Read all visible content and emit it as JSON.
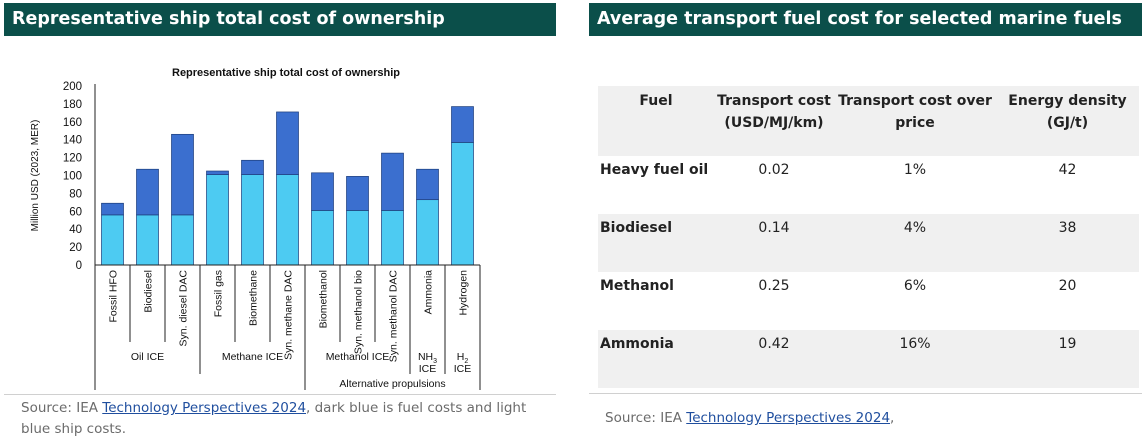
{
  "left_panel": {
    "header": "Representative ship total cost of ownership",
    "source_prefix": "Source:  IEA ",
    "source_link": "Technology Perspectives 2024",
    "source_suffix": ", dark blue is fuel costs and light blue ship costs."
  },
  "right_panel": {
    "header": "Average transport fuel cost for selected marine fuels",
    "source_prefix": "Source:  IEA ",
    "source_link": "Technology Perspectives 2024",
    "source_suffix": ",",
    "table": {
      "headers": [
        "Fuel",
        "Transport cost (USD/MJ/km)",
        "Transport cost over price",
        "Energy density (GJ/t)"
      ],
      "rows": [
        [
          "Heavy fuel oil",
          "0.02",
          "1%",
          "42"
        ],
        [
          "Biodiesel",
          "0.14",
          "4%",
          "38"
        ],
        [
          "Methanol",
          "0.25",
          "6%",
          "20"
        ],
        [
          "Ammonia",
          "0.42",
          "16%",
          "19"
        ]
      ]
    }
  },
  "chart_data": {
    "type": "bar",
    "stacked": true,
    "title": "Representative ship total cost of ownership",
    "ylabel": "Million USD (2023, MER)",
    "xlabel": "",
    "ylim": [
      0,
      200
    ],
    "yticks": [
      0,
      20,
      40,
      60,
      80,
      100,
      120,
      140,
      160,
      180,
      200
    ],
    "categories": [
      "Fossil HFO",
      "Biodiesel",
      "Syn. diesel DAC",
      "Fossil gas",
      "Biomethane",
      "Syn. methane DAC",
      "Biomethanol",
      "Syn. methanol bio",
      "Syn. methanol DAC",
      "Ammonia",
      "Hydrogen"
    ],
    "series": [
      {
        "values": [
          56,
          56,
          56,
          101,
          101,
          101,
          61,
          61,
          61,
          73,
          137
        ],
        "color": "#4dcbf2"
      },
      {
        "values": [
          13,
          51,
          90,
          4,
          16,
          70,
          42,
          38,
          64,
          34,
          40
        ],
        "color": "#3b6fcf"
      }
    ],
    "groups": [
      {
        "label": "Oil ICE",
        "start": 0,
        "end": 2
      },
      {
        "label": "Methane ICE",
        "start": 3,
        "end": 5
      },
      {
        "label": "Methanol ICE",
        "start": 6,
        "end": 8
      },
      {
        "label": "NH3 ICE",
        "start": 9,
        "end": 9
      },
      {
        "label": "H2 ICE",
        "start": 10,
        "end": 10
      }
    ],
    "supergroup": {
      "label": "Alternative propulsions",
      "start": 6,
      "end": 10
    },
    "grid": false,
    "legend": "none"
  }
}
